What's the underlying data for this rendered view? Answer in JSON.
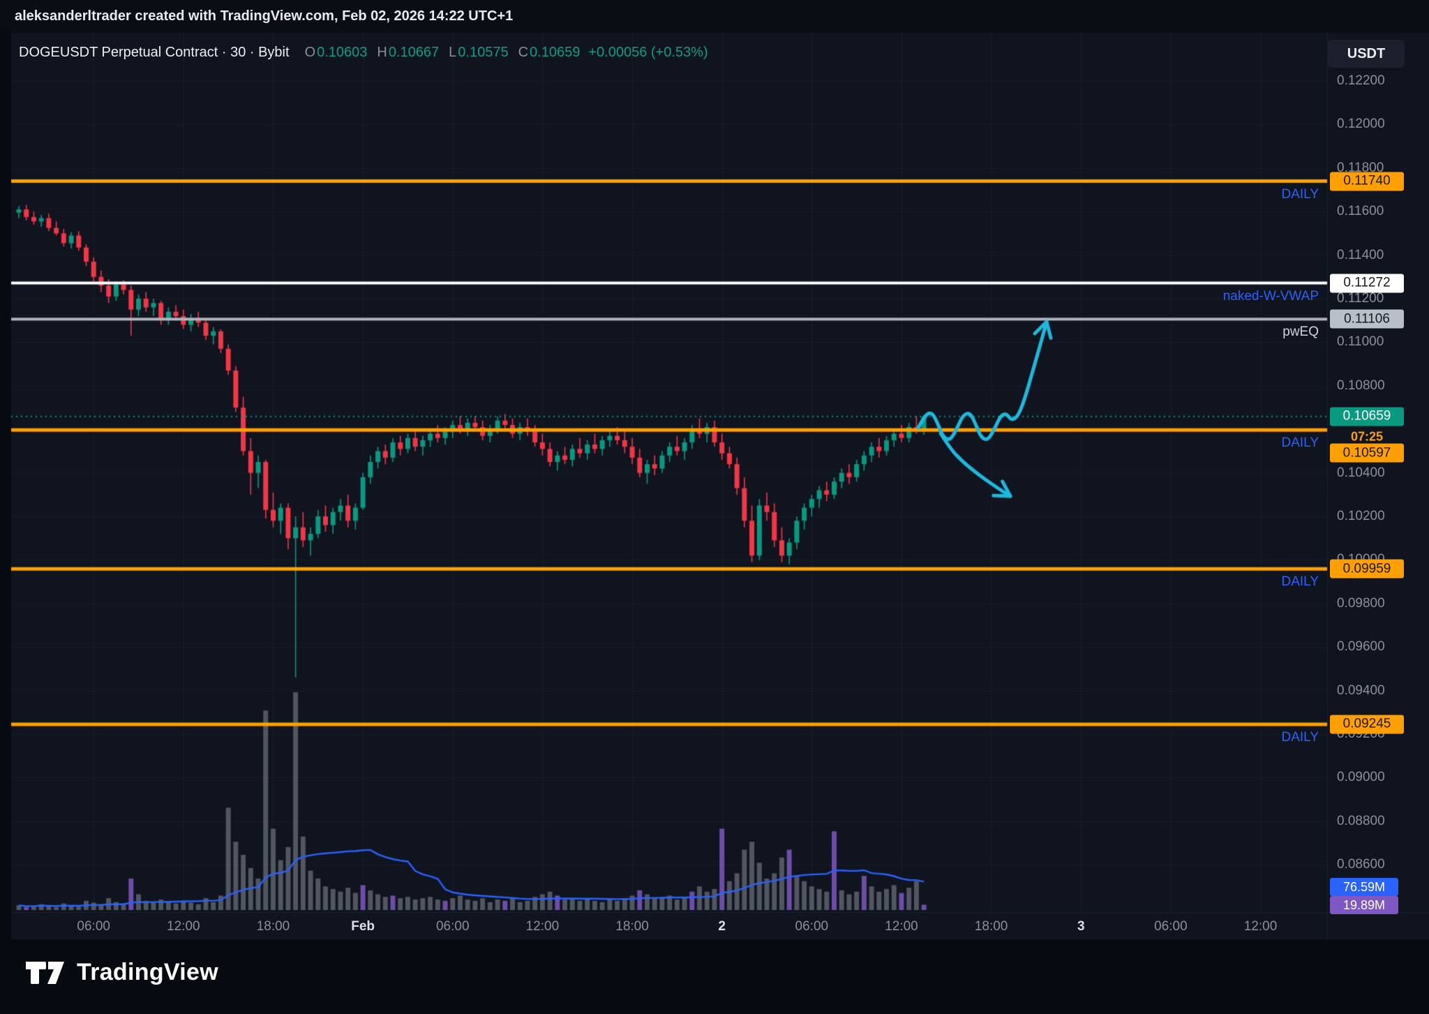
{
  "header": {
    "attribution": "aleksanderltrader created with TradingView.com, Feb 02, 2026 14:22 UTC+1"
  },
  "symbol_bar": {
    "title": "DOGEUSDT Perpetual Contract · 30 · Bybit",
    "o_label": "O",
    "o_value": "0.10603",
    "h_label": "H",
    "h_value": "0.10667",
    "l_label": "L",
    "l_value": "0.10575",
    "c_label": "C",
    "c_value": "0.10659",
    "change": "+0.00056 (+0.53%)",
    "up_color": "#0b9d85"
  },
  "price_axis_currency": "USDT",
  "logo_text": "TradingView",
  "chart_data": {
    "type": "candlestick",
    "symbol": "DOGEUSDT",
    "exchange": "Bybit",
    "interval": "30",
    "current_price": 0.10659,
    "current_price_color": "#089981",
    "up_color": "#089981",
    "down_color": "#f23645",
    "ylim": [
      0.0855,
      0.1235
    ],
    "grid": true,
    "price_axis": {
      "ticks": [
        {
          "label": "0.12200",
          "value": 0.122
        },
        {
          "label": "0.12000",
          "value": 0.12
        },
        {
          "label": "0.11800",
          "value": 0.118
        },
        {
          "label": "0.11600",
          "value": 0.116
        },
        {
          "label": "0.11400",
          "value": 0.114
        },
        {
          "label": "0.11200",
          "value": 0.112
        },
        {
          "label": "0.11000",
          "value": 0.11
        },
        {
          "label": "0.10800",
          "value": 0.108
        },
        {
          "label": "0.10400",
          "value": 0.104
        },
        {
          "label": "0.10200",
          "value": 0.102
        },
        {
          "label": "0.10000",
          "value": 0.1
        },
        {
          "label": "0.09800",
          "value": 0.098
        },
        {
          "label": "0.09600",
          "value": 0.096
        },
        {
          "label": "0.09400",
          "value": 0.094
        },
        {
          "label": "0.09200",
          "value": 0.092
        },
        {
          "label": "0.09000",
          "value": 0.09
        },
        {
          "label": "0.08800",
          "value": 0.088
        },
        {
          "label": "0.08600",
          "value": 0.086
        }
      ],
      "badges": [
        {
          "text": "0.11740",
          "value": 0.1174,
          "bg": "#ffa000",
          "fg": "#16191f"
        },
        {
          "text": "0.11272",
          "value": 0.11272,
          "bg": "#ffffff",
          "fg": "#16191f"
        },
        {
          "text": "0.11106",
          "value": 0.11106,
          "bg": "#b9bfc9",
          "fg": "#16191f"
        },
        {
          "text": "0.10659",
          "value": 0.10659,
          "bg": "#089981",
          "fg": "#ffffff"
        },
        {
          "text": "0.10597",
          "value": 0.10597,
          "bg": "#ffa000",
          "fg": "#16191f",
          "dy": 33
        },
        {
          "text": "0.09959",
          "value": 0.09959,
          "bg": "#ffa000",
          "fg": "#16191f"
        },
        {
          "text": "0.09245",
          "value": 0.09245,
          "bg": "#ffa000",
          "fg": "#16191f"
        }
      ],
      "countdown": {
        "text": "07:25",
        "value": 0.10659,
        "dy": 29,
        "color": "#ffa000"
      }
    },
    "levels": [
      {
        "value": 0.1174,
        "line_color": "#ffa000",
        "line_width": 5,
        "label": "DAILY",
        "label_color": "#2962ff"
      },
      {
        "value": 0.11272,
        "line_color": "#ffffff",
        "line_width": 4,
        "label": "naked-W-VWAP",
        "label_color": "#2962ff"
      },
      {
        "value": 0.11106,
        "line_color": "#b2b5be",
        "line_width": 4,
        "label": "pwEQ",
        "label_color": "#d1d4dc"
      },
      {
        "value": 0.10597,
        "line_color": "#ffa000",
        "line_width": 5,
        "label": "DAILY",
        "label_color": "#2962ff"
      },
      {
        "value": 0.09959,
        "line_color": "#ffa000",
        "line_width": 5,
        "label": "DAILY",
        "label_color": "#2962ff"
      },
      {
        "value": 0.09245,
        "line_color": "#ffa000",
        "line_width": 5,
        "label": "DAILY",
        "label_color": "#2962ff"
      }
    ],
    "time_axis": {
      "labels": [
        {
          "label": "06:00",
          "major": false
        },
        {
          "label": "12:00",
          "major": false
        },
        {
          "label": "18:00",
          "major": false
        },
        {
          "label": "Feb",
          "major": true
        },
        {
          "label": "06:00",
          "major": false
        },
        {
          "label": "12:00",
          "major": false
        },
        {
          "label": "18:00",
          "major": false
        },
        {
          "label": "2",
          "major": true
        },
        {
          "label": "06:00",
          "major": false
        },
        {
          "label": "12:00",
          "major": false
        },
        {
          "label": "18:00",
          "major": false
        },
        {
          "label": "3",
          "major": true
        },
        {
          "label": "06:00",
          "major": false
        },
        {
          "label": "12:00",
          "major": false
        }
      ]
    },
    "volume": {
      "ma_badge": {
        "text": "76.59M",
        "bg": "#2962ff"
      },
      "last_badge": {
        "text": "19.89M",
        "bg": "#7e57c2"
      },
      "ma_color": "#2962ff",
      "bar_gray": "rgba(148,152,163,0.5)",
      "bar_purple": "rgba(126,87,194,0.85)",
      "ma_period": 20
    },
    "candles": [
      [
        0.11595,
        0.11625,
        0.1157,
        0.1161,
        18
      ],
      [
        0.1161,
        0.1163,
        0.1156,
        0.11575,
        12,
        1
      ],
      [
        0.11575,
        0.116,
        0.1154,
        0.11555,
        15
      ],
      [
        0.11555,
        0.11585,
        0.1153,
        0.1157,
        22
      ],
      [
        0.1157,
        0.1159,
        0.1151,
        0.11525,
        14
      ],
      [
        0.11525,
        0.11555,
        0.1149,
        0.115,
        11
      ],
      [
        0.115,
        0.1152,
        0.1144,
        0.11455,
        25
      ],
      [
        0.11455,
        0.11505,
        0.1143,
        0.1149,
        16
      ],
      [
        0.1149,
        0.1151,
        0.1142,
        0.11435,
        13
      ],
      [
        0.11435,
        0.1145,
        0.1135,
        0.1137,
        35
      ],
      [
        0.1137,
        0.1139,
        0.1128,
        0.113,
        28
      ],
      [
        0.113,
        0.1133,
        0.1123,
        0.1126,
        22
      ],
      [
        0.1126,
        0.1129,
        0.1118,
        0.1121,
        45
      ],
      [
        0.1121,
        0.1128,
        0.1119,
        0.11265,
        30
      ],
      [
        0.11265,
        0.11285,
        0.1122,
        0.1124,
        25
      ],
      [
        0.1124,
        0.1126,
        0.1103,
        0.1115,
        120,
        1
      ],
      [
        0.1115,
        0.1122,
        0.1112,
        0.112,
        60
      ],
      [
        0.112,
        0.1123,
        0.1114,
        0.1116,
        35
      ],
      [
        0.1116,
        0.112,
        0.1112,
        0.1118,
        30
      ],
      [
        0.1118,
        0.1119,
        0.1108,
        0.111,
        40
      ],
      [
        0.111,
        0.1116,
        0.1108,
        0.1114,
        30
      ],
      [
        0.1114,
        0.1117,
        0.111,
        0.1112,
        25
      ],
      [
        0.1112,
        0.1115,
        0.1106,
        0.1108,
        35
      ],
      [
        0.1108,
        0.1113,
        0.1105,
        0.1111,
        28
      ],
      [
        0.1111,
        0.1114,
        0.1107,
        0.1109,
        22
      ],
      [
        0.1109,
        0.1111,
        0.1101,
        0.1103,
        45
      ],
      [
        0.1103,
        0.1107,
        0.1099,
        0.1105,
        30
      ],
      [
        0.1105,
        0.1106,
        0.1095,
        0.1097,
        55
      ],
      [
        0.1097,
        0.1099,
        0.1085,
        0.1087,
        390
      ],
      [
        0.1087,
        0.1089,
        0.1068,
        0.107,
        260
      ],
      [
        0.107,
        0.1075,
        0.1048,
        0.105,
        210
      ],
      [
        0.105,
        0.1056,
        0.103,
        0.104,
        160
      ],
      [
        0.104,
        0.1048,
        0.1033,
        0.1045,
        120
      ],
      [
        0.1045,
        0.1046,
        0.1019,
        0.1023,
        760
      ],
      [
        0.1023,
        0.1031,
        0.1015,
        0.1018,
        310
      ],
      [
        0.1018,
        0.1026,
        0.1012,
        0.1024,
        190
      ],
      [
        0.1024,
        0.1026,
        0.1005,
        0.101,
        240
      ],
      [
        0.101,
        0.102,
        0.0946,
        0.1015,
        830
      ],
      [
        0.1015,
        0.1022,
        0.1006,
        0.1009,
        280
      ],
      [
        0.1009,
        0.1015,
        0.1002,
        0.1012,
        150
      ],
      [
        0.1012,
        0.1023,
        0.101,
        0.102,
        120
      ],
      [
        0.102,
        0.1025,
        0.1013,
        0.1016,
        90
      ],
      [
        0.1016,
        0.1024,
        0.1012,
        0.1022,
        80
      ],
      [
        0.1022,
        0.1028,
        0.1018,
        0.1025,
        70
      ],
      [
        0.1025,
        0.103,
        0.1015,
        0.1018,
        85
      ],
      [
        0.1018,
        0.1026,
        0.1014,
        0.1024,
        65
      ],
      [
        0.1024,
        0.104,
        0.1023,
        0.1038,
        95,
        1
      ],
      [
        0.1038,
        0.1048,
        0.1035,
        0.1045,
        75
      ],
      [
        0.1045,
        0.1052,
        0.1042,
        0.105,
        60
      ],
      [
        0.105,
        0.1053,
        0.1044,
        0.1047,
        50
      ],
      [
        0.1047,
        0.1056,
        0.1045,
        0.1054,
        55,
        1
      ],
      [
        0.1054,
        0.1057,
        0.1048,
        0.1051,
        45
      ],
      [
        0.1051,
        0.1058,
        0.1049,
        0.1056,
        50
      ],
      [
        0.1056,
        0.1059,
        0.105,
        0.1052,
        40
      ],
      [
        0.1052,
        0.1057,
        0.1048,
        0.1055,
        45
      ],
      [
        0.1055,
        0.106,
        0.1052,
        0.1058,
        50
      ],
      [
        0.1058,
        0.1062,
        0.1054,
        0.1056,
        40
      ],
      [
        0.1056,
        0.1061,
        0.1053,
        0.1059,
        35,
        1
      ],
      [
        0.1059,
        0.1064,
        0.1056,
        0.1062,
        45
      ],
      [
        0.1062,
        0.1066,
        0.1058,
        0.106,
        55
      ],
      [
        0.106,
        0.1065,
        0.1057,
        0.1063,
        40
      ],
      [
        0.1063,
        0.1066,
        0.1059,
        0.1061,
        35
      ],
      [
        0.1061,
        0.1064,
        0.1055,
        0.1057,
        45
      ],
      [
        0.1057,
        0.1062,
        0.1054,
        0.106,
        30
      ],
      [
        0.106,
        0.1066,
        0.1058,
        0.1064,
        40
      ],
      [
        0.1064,
        0.1067,
        0.106,
        0.1062,
        35,
        1
      ],
      [
        0.1062,
        0.1065,
        0.1056,
        0.1058,
        45
      ],
      [
        0.1058,
        0.1063,
        0.1055,
        0.1061,
        30
      ],
      [
        0.1061,
        0.1065,
        0.1057,
        0.1059,
        35
      ],
      [
        0.1059,
        0.1062,
        0.1052,
        0.1054,
        50
      ],
      [
        0.1054,
        0.1058,
        0.1048,
        0.1051,
        60
      ],
      [
        0.1051,
        0.1054,
        0.1043,
        0.1045,
        70
      ],
      [
        0.1045,
        0.105,
        0.1041,
        0.1048,
        55,
        1
      ],
      [
        0.1048,
        0.1052,
        0.1044,
        0.1046,
        40
      ],
      [
        0.1046,
        0.1053,
        0.1043,
        0.1051,
        45
      ],
      [
        0.1051,
        0.1056,
        0.1047,
        0.1049,
        35
      ],
      [
        0.1049,
        0.1055,
        0.1046,
        0.1053,
        40
      ],
      [
        0.1053,
        0.1058,
        0.1049,
        0.1051,
        35
      ],
      [
        0.1051,
        0.1057,
        0.1048,
        0.1055,
        30
      ],
      [
        0.1055,
        0.106,
        0.1052,
        0.1057,
        40
      ],
      [
        0.1057,
        0.1061,
        0.1053,
        0.1055,
        35
      ],
      [
        0.1055,
        0.1059,
        0.1049,
        0.1052,
        45
      ],
      [
        0.1052,
        0.1056,
        0.1044,
        0.1047,
        55
      ],
      [
        0.1047,
        0.1051,
        0.1038,
        0.104,
        75,
        1
      ],
      [
        0.104,
        0.1046,
        0.1035,
        0.1044,
        60
      ],
      [
        0.1044,
        0.1048,
        0.1039,
        0.1042,
        45
      ],
      [
        0.1042,
        0.105,
        0.104,
        0.1048,
        50
      ],
      [
        0.1048,
        0.1054,
        0.1045,
        0.1052,
        55
      ],
      [
        0.1052,
        0.1057,
        0.1048,
        0.105,
        40
      ],
      [
        0.105,
        0.1056,
        0.1046,
        0.1054,
        50
      ],
      [
        0.1054,
        0.1062,
        0.1051,
        0.106,
        70,
        1
      ],
      [
        0.106,
        0.1065,
        0.1056,
        0.1058,
        90
      ],
      [
        0.1058,
        0.1063,
        0.1054,
        0.1061,
        70
      ],
      [
        0.1061,
        0.1064,
        0.1052,
        0.1054,
        80
      ],
      [
        0.1054,
        0.1058,
        0.1046,
        0.1049,
        310,
        1
      ],
      [
        0.1049,
        0.1052,
        0.1042,
        0.1044,
        110
      ],
      [
        0.1044,
        0.1047,
        0.103,
        0.1033,
        140
      ],
      [
        0.1033,
        0.1038,
        0.1015,
        0.1018,
        230
      ],
      [
        0.1018,
        0.1025,
        0.0999,
        0.1002,
        260
      ],
      [
        0.1002,
        0.1028,
        0.1,
        0.1025,
        180
      ],
      [
        0.1025,
        0.1031,
        0.1018,
        0.1022,
        120
      ],
      [
        0.1022,
        0.1026,
        0.1006,
        0.1009,
        140
      ],
      [
        0.1009,
        0.1015,
        0.0999,
        0.1002,
        200
      ],
      [
        0.1002,
        0.101,
        0.0998,
        0.1008,
        230,
        1
      ],
      [
        0.1008,
        0.102,
        0.1005,
        0.1018,
        130
      ],
      [
        0.1018,
        0.1026,
        0.1014,
        0.1024,
        110
      ],
      [
        0.1024,
        0.103,
        0.102,
        0.1028,
        90
      ],
      [
        0.1028,
        0.1034,
        0.1024,
        0.1032,
        80
      ],
      [
        0.1032,
        0.1036,
        0.1027,
        0.103,
        70
      ],
      [
        0.103,
        0.1038,
        0.1028,
        0.1036,
        300,
        1
      ],
      [
        0.1036,
        0.1042,
        0.1033,
        0.104,
        75
      ],
      [
        0.104,
        0.1044,
        0.1035,
        0.1038,
        60
      ],
      [
        0.1038,
        0.1046,
        0.1036,
        0.1044,
        70
      ],
      [
        0.1044,
        0.105,
        0.1041,
        0.1048,
        130,
        1
      ],
      [
        0.1048,
        0.1054,
        0.1045,
        0.1052,
        90
      ],
      [
        0.1052,
        0.1056,
        0.1047,
        0.105,
        70
      ],
      [
        0.105,
        0.1057,
        0.1048,
        0.1055,
        80
      ],
      [
        0.1055,
        0.106,
        0.1052,
        0.1058,
        95
      ],
      [
        0.1058,
        0.1062,
        0.1054,
        0.1056,
        65,
        1
      ],
      [
        0.1056,
        0.1063,
        0.1054,
        0.1061,
        85
      ],
      [
        0.1061,
        0.1066,
        0.1058,
        0.10603,
        110
      ],
      [
        0.10603,
        0.10667,
        0.10575,
        0.10659,
        20,
        1
      ]
    ],
    "drawings": [
      {
        "name": "squiggle-arrow-up",
        "color": "#1fb8dd",
        "width": 5,
        "arrow": true,
        "points": [
          [
            1316,
            613
          ],
          [
            1326,
            594
          ],
          [
            1336,
            591
          ],
          [
            1344,
            607
          ],
          [
            1352,
            627
          ],
          [
            1362,
            631
          ],
          [
            1372,
            613
          ],
          [
            1380,
            595
          ],
          [
            1390,
            591
          ],
          [
            1398,
            607
          ],
          [
            1406,
            627
          ],
          [
            1416,
            631
          ],
          [
            1426,
            613
          ],
          [
            1434,
            596
          ],
          [
            1442,
            592
          ],
          [
            1450,
            603
          ],
          [
            1460,
            595
          ],
          [
            1470,
            567
          ],
          [
            1482,
            525
          ],
          [
            1492,
            490
          ],
          [
            1500,
            461
          ]
        ]
      },
      {
        "name": "curve-arrow-down",
        "color": "#1fb8dd",
        "width": 5,
        "arrow": true,
        "points": [
          [
            1348,
            621
          ],
          [
            1362,
            643
          ],
          [
            1378,
            660
          ],
          [
            1396,
            675
          ],
          [
            1412,
            687
          ],
          [
            1428,
            698
          ],
          [
            1440,
            706
          ],
          [
            1448,
            711
          ]
        ]
      }
    ]
  }
}
